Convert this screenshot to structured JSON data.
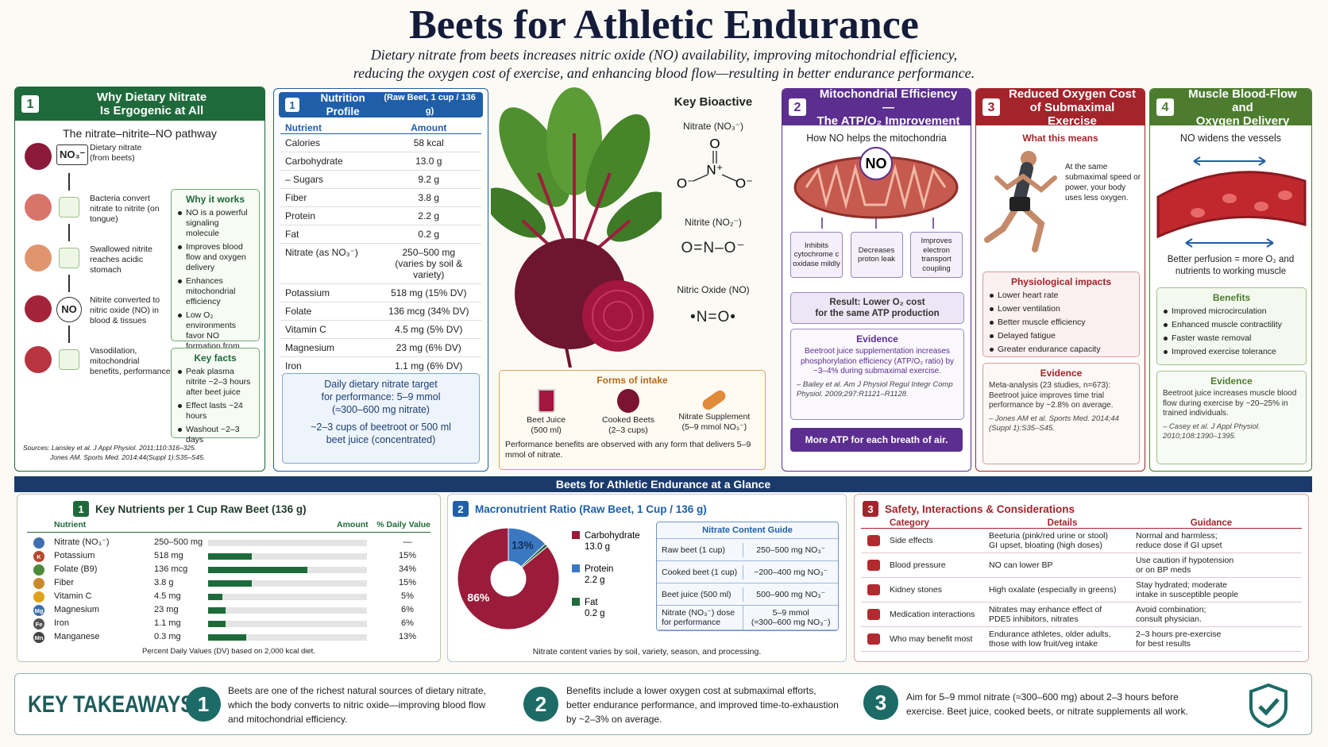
{
  "header": {
    "title": "Beets for Athletic Endurance",
    "subtitle": [
      "Dietary nitrate from beets increases nitric oxide (NO) availability, improving mitochondrial efficiency,",
      "reducing the oxygen cost of exercise, and enhancing blood flow—resulting in better endurance performance."
    ]
  },
  "pathway": {
    "badge": "1",
    "title": "Why Dietary Nitrate\nIs Ergogenic at All",
    "subtitle": "The nitrate–nitrite–NO pathway",
    "steps": [
      {
        "tag": "NO₃⁻",
        "text": "Dietary nitrate\n(from beets)"
      },
      {
        "text": "Bacteria convert nitrate to nitrite (on tongue)"
      },
      {
        "text": "Swallowed nitrite reaches acidic stomach"
      },
      {
        "tag": "NO",
        "text": "Nitrite converted to nitric oxide (NO) in blood & tissues"
      },
      {
        "text": "Vasodilation, mitochondrial benefits, performance"
      }
    ],
    "why": {
      "title": "Why it works",
      "items": [
        "NO is a powerful signaling molecule",
        "Improves blood flow and oxygen delivery",
        "Enhances mitochondrial efficiency",
        "Low O₂ environments favor NO formation from nitrite"
      ]
    },
    "facts": {
      "title": "Key facts",
      "items": [
        "Peak plasma nitrite ~2–3 hours after beet juice",
        "Effect lasts ~24 hours",
        "Washout ~2–3 days"
      ]
    },
    "sources": [
      "Sources: Lansley et al. J Appl Physiol. 2011;110:316–325.",
      "Jones AM. Sports Med. 2014;44(Suppl 1):S35–S45."
    ]
  },
  "nutrition": {
    "badge": "1",
    "title": "Nutrition Profile",
    "qualifier": "(Raw Beet, 1 cup / 136 g)",
    "columns": [
      "Nutrient",
      "Amount"
    ],
    "rows": [
      [
        "Calories",
        "58 kcal"
      ],
      [
        "Carbohydrate",
        "13.0 g"
      ],
      [
        "– Sugars",
        "9.2 g"
      ],
      [
        "Fiber",
        "3.8 g"
      ],
      [
        "Protein",
        "2.2 g"
      ],
      [
        "Fat",
        "0.2 g"
      ],
      [
        "Nitrate (as NO₃⁻)",
        "250–500 mg\n(varies by soil & variety)"
      ],
      [
        "Potassium",
        "518 mg (15% DV)"
      ],
      [
        "Folate",
        "136 mcg (34% DV)"
      ],
      [
        "Vitamin C",
        "4.5 mg (5% DV)"
      ],
      [
        "Magnesium",
        "23 mg (6% DV)"
      ],
      [
        "Iron",
        "1.1 mg (6% DV)"
      ]
    ],
    "target": [
      "Daily dietary nitrate target\nfor performance: 5–9 mmol\n(≈300–600 mg nitrate)",
      "~2–3 cups of beetroot or 500 ml\nbeet juice (concentrated)"
    ]
  },
  "bioactive": {
    "title": "Key Bioactive",
    "nitrate": {
      "name": "Nitrate (NO₃⁻)",
      "structure": [
        "O",
        "N⁺",
        "O⁻",
        "O⁻"
      ]
    },
    "nitrite": {
      "name": "Nitrite (NO₂⁻)",
      "formula": "O=N–O⁻"
    },
    "nitric_oxide": {
      "name": "Nitric Oxide (NO)",
      "formula": "•N=O•"
    }
  },
  "intake": {
    "title": "Forms of intake",
    "items": [
      "Beet Juice\n(500 ml)",
      "Cooked Beets\n(2–3 cups)",
      "Nitrate Supplement\n(5–9 mmol NO₃⁻)"
    ],
    "note": "Performance benefits are observed with any form that delivers 5–9 mmol of nitrate."
  },
  "mito": {
    "badge": "2",
    "title": "Mitochondrial Efficiency —\nThe ATP/O₂ Improvement",
    "subtitle": "How NO helps the mitochondria",
    "label": "NO",
    "effects": [
      "Inhibits cytochrome c oxidase mildly",
      "Decreases proton leak",
      "Improves electron transport coupling"
    ],
    "result": "Result: Lower O₂ cost\nfor the same ATP production",
    "evidence": {
      "title": "Evidence",
      "text": "Beetroot juice supplementation increases phosphorylation efficiency (ATP/O₂ ratio) by ~3–4% during submaximal exercise.",
      "cite": "– Bailey et al. Am J Physiol Regul Integr Comp Physiol. 2009;297:R1121–R1128."
    },
    "footer": "More ATP for each breath of air."
  },
  "oxygen": {
    "badge": "3",
    "title": "Reduced Oxygen Cost\nof Submaximal Exercise",
    "subtitle": "What this means",
    "text": "At the same submaximal speed or power, your body uses less oxygen.",
    "impacts": {
      "title": "Physiological impacts",
      "items": [
        "Lower heart rate",
        "Lower ventilation",
        "Better muscle efficiency",
        "Delayed fatigue",
        "Greater endurance capacity"
      ]
    },
    "evidence": {
      "title": "Evidence",
      "text": "Meta-analysis (23 studies, n=673): Beetroot juice improves time trial performance by ~2.8% on average.",
      "cite": "– Jones AM et al. Sports Med. 2014;44 (Suppl 1):S35–S45."
    }
  },
  "flow": {
    "badge": "4",
    "title": "Muscle Blood-Flow and\nOxygen Delivery",
    "subtitle": "NO widens the vessels",
    "caption": "Better perfusion = more O₂ and nutrients to working muscle",
    "benefits": {
      "title": "Benefits",
      "items": [
        "Improved microcirculation",
        "Enhanced muscle contractility",
        "Faster waste removal",
        "Improved exercise tolerance"
      ]
    },
    "evidence": {
      "title": "Evidence",
      "text": "Beetroot juice increases muscle blood flow during exercise by ~20–25% in trained individuals.",
      "cite": "– Casey et al. J Appl Physiol. 2010;108:1390–1395."
    }
  },
  "band": "Beets for Athletic Endurance at a Glance",
  "key_nutrients": {
    "badge": "1",
    "title": "Key Nutrients per 1 Cup Raw Beet (136 g)",
    "columns": [
      "Nutrient",
      "Amount",
      "% Daily Value"
    ],
    "rows": [
      {
        "name": "Nitrate (NO₃⁻)",
        "amount": "250–500 mg",
        "dv": null,
        "dv_label": "—"
      },
      {
        "icon": "K",
        "name": "Potassium",
        "amount": "518 mg",
        "dv": 15,
        "dv_label": "15%"
      },
      {
        "name": "Folate (B9)",
        "amount": "136 mcg",
        "dv": 34,
        "dv_label": "34%"
      },
      {
        "name": "Fiber",
        "amount": "3.8 g",
        "dv": 15,
        "dv_label": "15%"
      },
      {
        "name": "Vitamin C",
        "amount": "4.5 mg",
        "dv": 5,
        "dv_label": "5%"
      },
      {
        "icon": "Mg",
        "name": "Magnesium",
        "amount": "23 mg",
        "dv": 6,
        "dv_label": "6%"
      },
      {
        "icon": "Fe",
        "name": "Iron",
        "amount": "1.1 mg",
        "dv": 6,
        "dv_label": "6%"
      },
      {
        "icon": "Mn",
        "name": "Manganese",
        "amount": "0.3 mg",
        "dv": 13,
        "dv_label": "13%"
      }
    ],
    "footnote": "Percent Daily Values (DV) based on 2,000 kcal diet."
  },
  "macro": {
    "badge": "2",
    "title": "Macronutrient Ratio (Raw Beet, 1 Cup / 136 g)",
    "slices": [
      {
        "name": "Carbohydrate",
        "amount": "13.0 g",
        "value": 86,
        "label": "86%",
        "color": "#9b1b3a"
      },
      {
        "name": "Protein",
        "amount": "2.2 g",
        "value": 13,
        "label": "13%",
        "color": "#3a78c2"
      },
      {
        "name": "Fat",
        "amount": "0.2 g",
        "value": 1,
        "color": "#1f6b3a"
      }
    ],
    "guide": {
      "title": "Nitrate Content Guide",
      "rows": [
        [
          "Raw beet (1 cup)",
          "250–500 mg NO₃⁻"
        ],
        [
          "Cooked beet (1 cup)",
          "~200–400 mg NO₃⁻"
        ],
        [
          "Beet juice (500 ml)",
          "500–900 mg NO₃⁻"
        ],
        [
          "Nitrate (NO₃⁻) dose\nfor performance",
          "5–9 mmol\n(≈300–600 mg NO₃⁻)"
        ]
      ]
    },
    "footnote": "Nitrate content varies by soil, variety, season, and processing."
  },
  "safety": {
    "badge": "3",
    "title": "Safety, Interactions & Considerations",
    "columns": [
      "Category",
      "Details",
      "Guidance"
    ],
    "rows": [
      [
        "Side effects",
        "Beeturia (pink/red urine or stool)\nGI upset, bloating (high doses)",
        "Normal and harmless;\nreduce dose if GI upset"
      ],
      [
        "Blood pressure",
        "NO can lower BP",
        "Use caution if hypotension\nor on BP meds"
      ],
      [
        "Kidney stones",
        "High oxalate (especially in greens)",
        "Stay hydrated; moderate\nintake in susceptible people"
      ],
      [
        "Medication interactions",
        "Nitrates may enhance effect of\nPDE5 inhibitors, nitrates",
        "Avoid combination;\nconsult physician."
      ],
      [
        "Who may benefit most",
        "Endurance athletes, older adults,\nthose with low fruit/veg intake",
        "2–3 hours pre-exercise\nfor best results"
      ]
    ]
  },
  "takeaways": {
    "title": "KEY TAKEAWAYS",
    "items": [
      {
        "n": "1",
        "text": "Beets are one of the richest natural sources of dietary nitrate,\nwhich the body converts to nitric oxide—improving blood flow\nand mitochondrial efficiency."
      },
      {
        "n": "2",
        "text": "Benefits include a lower oxygen cost at submaximal efforts,\nbetter endurance performance, and improved time-to-exhaustion\nby ~2–3% on average."
      },
      {
        "n": "3",
        "text": "Aim for 5–9 mmol nitrate (≈300–600 mg) about 2–3 hours before\nexercise. Beet juice, cooked beets, or nitrate supplements all work."
      }
    ]
  }
}
